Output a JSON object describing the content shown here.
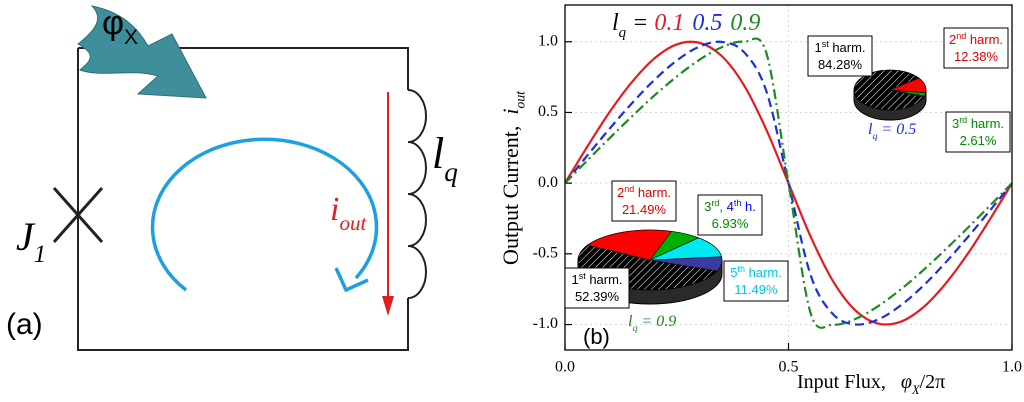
{
  "diagram": {
    "flux": {
      "symbol": "φ",
      "subscript": "X"
    },
    "junction": {
      "symbol": "J",
      "subscript": "1"
    },
    "inductance": {
      "symbol": "l",
      "subscript": "q"
    },
    "current": {
      "symbol": "i",
      "subscript": "out"
    },
    "panel_label": "(a)"
  },
  "chart_data": [
    {
      "type": "line",
      "panel_label": "(b)",
      "ylabel": {
        "text": "Output Current,  ",
        "symbol": "i",
        "subscript": "out"
      },
      "xlabel": {
        "text": "Input Flux,   ",
        "symbol": "φ",
        "subscript": "X",
        "suffix": "/2π"
      },
      "legend_prefix": {
        "symbol": "l",
        "subscript": "q",
        "suffix": " = "
      },
      "x": [
        0,
        0.05,
        0.1,
        0.15,
        0.2,
        0.25,
        0.3,
        0.35,
        0.4,
        0.45,
        0.5,
        0.55,
        0.6,
        0.65,
        0.7,
        0.75,
        0.8,
        0.85,
        0.9,
        0.95,
        1
      ],
      "xlim": [
        0,
        1
      ],
      "ylim": [
        -1.18,
        1.26
      ],
      "xticks": [
        {
          "value": 0,
          "label": "0.0"
        },
        0.5,
        {
          "value": 1,
          "label": "1.0"
        }
      ],
      "yticks": [
        {
          "value": -1,
          "label": "-1.0"
        },
        -0.5,
        {
          "value": 0,
          "label": "0.0"
        },
        0.5,
        {
          "value": 1,
          "label": "1.0"
        }
      ],
      "grid": true,
      "series": [
        {
          "name": "0.1",
          "color": "#e8191f",
          "dash": "none",
          "values": [
            0,
            0.259,
            0.504,
            0.716,
            0.882,
            0.981,
            0.993,
            0.901,
            0.695,
            0.381,
            0,
            -0.381,
            -0.695,
            -0.901,
            -0.993,
            -0.981,
            -0.882,
            -0.716,
            -0.504,
            -0.259,
            0
          ]
        },
        {
          "name": "0.5",
          "color": "#1a2fe0",
          "dash": "9,5",
          "values": [
            0,
            0.196,
            0.386,
            0.566,
            0.73,
            0.867,
            0.965,
            0.999,
            0.928,
            0.655,
            0,
            -0.655,
            -0.928,
            -0.999,
            -0.965,
            -0.867,
            -0.73,
            -0.566,
            -0.386,
            -0.196,
            0
          ]
        },
        {
          "name": "0.9",
          "color": "#1f8a1f",
          "dash": "10,4,2,4",
          "values": [
            0,
            0.161,
            0.319,
            0.473,
            0.62,
            0.754,
            0.871,
            0.96,
            1.0,
            0.925,
            0,
            -0.925,
            -1.0,
            -0.96,
            -0.871,
            -0.754,
            -0.62,
            -0.473,
            -0.319,
            -0.161,
            0
          ]
        }
      ]
    },
    {
      "type": "pie",
      "caption": {
        "symbol": "l",
        "subscript": "q",
        "suffix": " = 0.5"
      },
      "caption_color": "#1a2fe0",
      "categories": [
        [
          {
            "text": "1"
          },
          {
            "text": "st",
            "sup": true
          },
          {
            "text": " harm."
          }
        ],
        [
          {
            "text": "2"
          },
          {
            "text": "nd",
            "sup": true
          },
          {
            "text": " harm."
          }
        ],
        [
          {
            "text": "3"
          },
          {
            "text": "rd",
            "sup": true
          },
          {
            "text": " harm."
          }
        ]
      ],
      "values": [
        84.28,
        12.38,
        2.61
      ],
      "value_labels": [
        "84.28%",
        "12.38%",
        "2.61%"
      ],
      "colors": [
        "#000000",
        "#ff0000",
        "#00b000"
      ],
      "label_colors": [
        "#000000",
        "#e00000",
        "#008a00"
      ]
    },
    {
      "type": "pie",
      "caption": {
        "symbol": "l",
        "subscript": "q",
        "suffix": " = 0.9"
      },
      "caption_color": "#1f8a1f",
      "categories": [
        [
          {
            "text": "1"
          },
          {
            "text": "st",
            "sup": true
          },
          {
            "text": " harm."
          }
        ],
        [
          {
            "text": "2"
          },
          {
            "text": "nd",
            "sup": true
          },
          {
            "text": " harm."
          }
        ],
        [
          {
            "text": "3"
          },
          {
            "text": "rd",
            "sup": true
          },
          {
            "text": ", "
          },
          {
            "text": "4",
            "color": "#0000ff"
          },
          {
            "text": "th",
            "sup": true,
            "color": "#0000ff"
          },
          {
            "text": " h.",
            "color": "#0000ff"
          }
        ],
        [
          {
            "text": "5"
          },
          {
            "text": "th",
            "sup": true
          },
          {
            "text": " harm."
          }
        ]
      ],
      "values": [
        52.39,
        21.49,
        6.93,
        11.49
      ],
      "value_labels": [
        "52.39%",
        "21.49%",
        "6.93%",
        "11.49%"
      ],
      "colors": [
        "#000000",
        "#ff0000",
        "#00b000",
        "#00e8f0"
      ],
      "label_colors": [
        "#000000",
        "#e00000",
        "#008a00",
        "#00c8e0"
      ]
    }
  ]
}
